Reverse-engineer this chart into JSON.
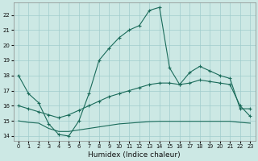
{
  "xlabel": "Humidex (Indice chaleur)",
  "bg_color": "#cce8e4",
  "grid_color": "#a0cccc",
  "line_color": "#1a6b5a",
  "x": [
    0,
    1,
    2,
    3,
    4,
    5,
    6,
    7,
    8,
    9,
    10,
    11,
    12,
    13,
    14,
    15,
    16,
    17,
    18,
    19,
    20,
    21,
    22,
    23
  ],
  "curve1": [
    18.0,
    16.8,
    16.2,
    14.8,
    14.1,
    14.0,
    15.0,
    16.8,
    19.0,
    19.8,
    20.5,
    21.0,
    21.3,
    22.3,
    22.5,
    18.5,
    17.4,
    18.2,
    18.6,
    18.3,
    18.0,
    17.8,
    15.8,
    15.8
  ],
  "curve2": [
    16.0,
    15.8,
    15.6,
    15.4,
    15.2,
    15.4,
    15.7,
    16.0,
    16.3,
    16.6,
    16.8,
    17.0,
    17.2,
    17.4,
    17.5,
    17.5,
    17.4,
    17.5,
    17.7,
    17.6,
    17.5,
    17.4,
    16.0,
    15.3
  ],
  "curve3": [
    15.0,
    14.9,
    14.85,
    14.5,
    14.3,
    14.3,
    14.4,
    14.5,
    14.6,
    14.7,
    14.8,
    14.85,
    14.9,
    14.95,
    14.97,
    14.97,
    14.97,
    14.97,
    14.97,
    14.97,
    14.97,
    14.97,
    14.9,
    14.85
  ],
  "ylim": [
    13.7,
    22.8
  ],
  "xlim": [
    -0.5,
    23.5
  ],
  "yticks": [
    14,
    15,
    16,
    17,
    18,
    19,
    20,
    21,
    22
  ],
  "xticks": [
    0,
    1,
    2,
    3,
    4,
    5,
    6,
    7,
    8,
    9,
    10,
    11,
    12,
    13,
    14,
    15,
    16,
    17,
    18,
    19,
    20,
    21,
    22,
    23
  ]
}
